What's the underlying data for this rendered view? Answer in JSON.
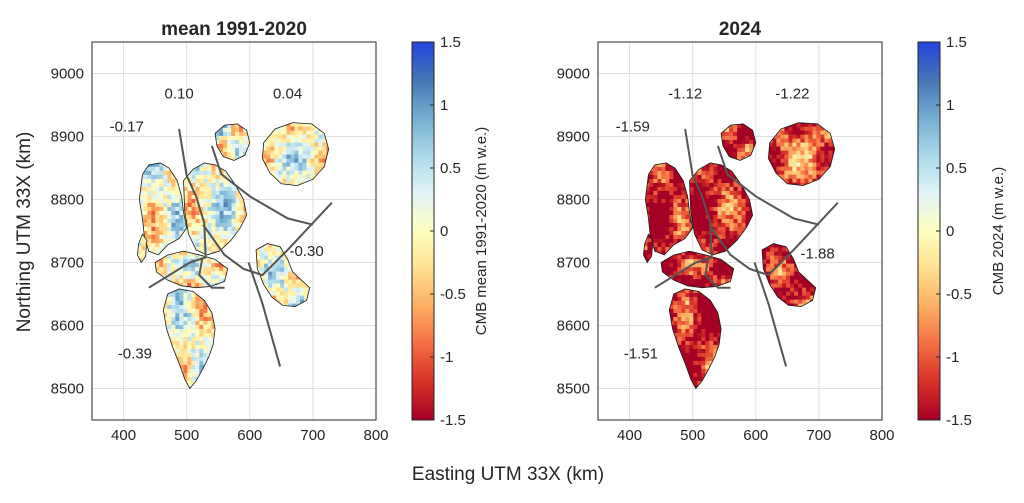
{
  "figure": {
    "xlabel": "Easting UTM 33X (km)",
    "ylabel": "Northing UTM 33X (km)"
  },
  "chart_data": [
    {
      "type": "heatmap",
      "title": "mean 1991-2020",
      "xlabel": "Easting UTM 33X (km)",
      "ylabel": "Northing UTM 33X (km)",
      "xlim": [
        350,
        800
      ],
      "ylim": [
        8450,
        9050
      ],
      "xticks": [
        "400",
        "500",
        "600",
        "700",
        "800"
      ],
      "yticks": [
        "8500",
        "8600",
        "8700",
        "8800",
        "8900",
        "9000"
      ],
      "grid": true,
      "colorbar": {
        "label": "CMB mean 1991-2020 (m w.e.)",
        "range": [
          -1.5,
          1.5
        ],
        "ticks": [
          "-1.5",
          "-1",
          "-0.5",
          "0",
          "0.5",
          "1",
          "1.5"
        ]
      },
      "region_values": [
        {
          "label": "-0.17",
          "x": 405,
          "y": 8908
        },
        {
          "label": "0.10",
          "x": 488,
          "y": 8960
        },
        {
          "label": "0.04",
          "x": 660,
          "y": 8960
        },
        {
          "label": "-0.30",
          "x": 690,
          "y": 8710
        },
        {
          "label": "-0.39",
          "x": 418,
          "y": 8548
        }
      ]
    },
    {
      "type": "heatmap",
      "title": "2024",
      "xlabel": "Easting UTM 33X (km)",
      "ylabel": "Northing UTM 33X (km)",
      "xlim": [
        350,
        800
      ],
      "ylim": [
        8450,
        9050
      ],
      "xticks": [
        "400",
        "500",
        "600",
        "700",
        "800"
      ],
      "yticks": [
        "8500",
        "8600",
        "8700",
        "8800",
        "8900",
        "9000"
      ],
      "grid": true,
      "colorbar": {
        "label": "CMB 2024 (m w.e.)",
        "range": [
          -1.5,
          1.5
        ],
        "ticks": [
          "-1.5",
          "-1",
          "-0.5",
          "0",
          "0.5",
          "1",
          "1.5"
        ]
      },
      "region_values": [
        {
          "label": "-1.59",
          "x": 405,
          "y": 8908
        },
        {
          "label": "-1.12",
          "x": 488,
          "y": 8960
        },
        {
          "label": "-1.22",
          "x": 658,
          "y": 8960
        },
        {
          "label": "-1.88",
          "x": 698,
          "y": 8706
        },
        {
          "label": "-1.51",
          "x": 418,
          "y": 8548
        }
      ]
    }
  ],
  "colors": {
    "colormap": [
      "#a50026",
      "#d73027",
      "#f46d43",
      "#fdae61",
      "#fee090",
      "#ffffbf",
      "#e0f3f8",
      "#abd9e9",
      "#74add1",
      "#4575b4",
      "#2244dd"
    ],
    "gridline": "#e0e0e0",
    "axis": "#262626",
    "divider": "#555555"
  }
}
